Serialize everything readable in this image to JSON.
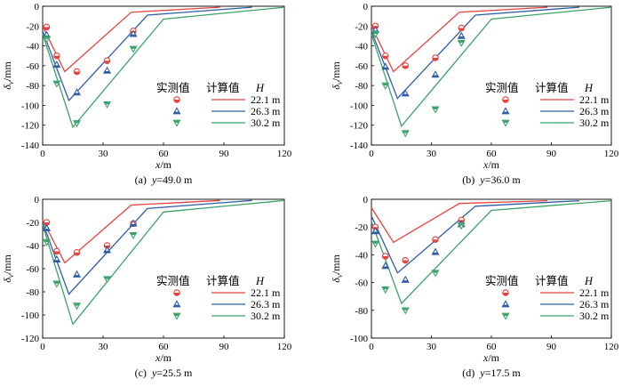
{
  "legend": {
    "measured_label": "实测值",
    "calculated_label": "计算值",
    "h_label": "H",
    "entries": [
      {
        "label": "22.1 m",
        "color": "#e8413c",
        "marker": "circle"
      },
      {
        "label": "26.3 m",
        "color": "#2f5da8",
        "marker": "triangle-up"
      },
      {
        "label": "30.2 m",
        "color": "#3aa36a",
        "marker": "triangle-down"
      }
    ]
  },
  "axes_text": {
    "xlabel_var": "x",
    "xlabel_unit": "/m",
    "ylabel_var": "δ",
    "ylabel_sub": "v",
    "ylabel_unit": "/mm"
  },
  "chart_data": [
    {
      "type": "line",
      "caption_prefix": "(a)",
      "caption_var": "y",
      "caption_value": "=49.0 m",
      "xlim": [
        0,
        120
      ],
      "ylim": [
        -140,
        0
      ],
      "xticks": [
        0,
        30,
        60,
        90,
        120
      ],
      "yticks": [
        0,
        -20,
        -40,
        -60,
        -80,
        -100,
        -120,
        -140
      ],
      "calculated": [
        {
          "name": "22.1 m",
          "points": [
            [
              0,
              -20
            ],
            [
              11,
              -66
            ],
            [
              44,
              -6
            ],
            [
              88,
              -1
            ]
          ]
        },
        {
          "name": "26.3 m",
          "points": [
            [
              0,
              -25
            ],
            [
              13,
              -95
            ],
            [
              52,
              -9
            ],
            [
              104,
              -1
            ]
          ]
        },
        {
          "name": "30.2 m",
          "points": [
            [
              0,
              -28
            ],
            [
              15,
              -122
            ],
            [
              60,
              -13
            ],
            [
              120,
              -1
            ]
          ]
        }
      ],
      "measured": [
        {
          "name": "22.1 m",
          "points": [
            [
              2,
              -21
            ],
            [
              7,
              -50
            ],
            [
              17,
              -66
            ],
            [
              32,
              -55
            ],
            [
              45,
              -25
            ]
          ]
        },
        {
          "name": "26.3 m",
          "points": [
            [
              2,
              -29
            ],
            [
              7,
              -59
            ],
            [
              17,
              -87
            ],
            [
              32,
              -65
            ],
            [
              45,
              -28
            ]
          ]
        },
        {
          "name": "30.2 m",
          "points": [
            [
              2,
              -33
            ],
            [
              7,
              -78
            ],
            [
              17,
              -118
            ],
            [
              32,
              -99
            ],
            [
              45,
              -43
            ]
          ]
        }
      ]
    },
    {
      "type": "line",
      "caption_prefix": "(b)",
      "caption_var": "y",
      "caption_value": "=36.0 m",
      "xlim": [
        0,
        120
      ],
      "ylim": [
        -140,
        0
      ],
      "xticks": [
        0,
        30,
        60,
        90,
        120
      ],
      "yticks": [
        0,
        -20,
        -40,
        -60,
        -80,
        -100,
        -120,
        -140
      ],
      "calculated": [
        {
          "name": "22.1 m",
          "points": [
            [
              0,
              -20
            ],
            [
              11,
              -66
            ],
            [
              44,
              -6
            ],
            [
              88,
              -1
            ]
          ]
        },
        {
          "name": "26.3 m",
          "points": [
            [
              0,
              -25
            ],
            [
              13,
              -93
            ],
            [
              52,
              -9
            ],
            [
              104,
              -1
            ]
          ]
        },
        {
          "name": "30.2 m",
          "points": [
            [
              0,
              -28
            ],
            [
              15,
              -121
            ],
            [
              60,
              -13
            ],
            [
              120,
              -1
            ]
          ]
        }
      ],
      "measured": [
        {
          "name": "22.1 m",
          "points": [
            [
              2,
              -20
            ],
            [
              7,
              -50
            ],
            [
              17,
              -60
            ],
            [
              32,
              -52
            ],
            [
              45,
              -22
            ]
          ]
        },
        {
          "name": "26.3 m",
          "points": [
            [
              2,
              -24
            ],
            [
              7,
              -61
            ],
            [
              17,
              -88
            ],
            [
              32,
              -69
            ],
            [
              45,
              -30
            ]
          ]
        },
        {
          "name": "30.2 m",
          "points": [
            [
              2,
              -28
            ],
            [
              7,
              -80
            ],
            [
              17,
              -128
            ],
            [
              32,
              -104
            ],
            [
              45,
              -37
            ]
          ]
        }
      ]
    },
    {
      "type": "line",
      "caption_prefix": "(c)",
      "caption_var": "y",
      "caption_value": "=25.5 m",
      "xlim": [
        0,
        120
      ],
      "ylim": [
        -120,
        0
      ],
      "xticks": [
        0,
        30,
        60,
        90,
        120
      ],
      "yticks": [
        0,
        -20,
        -40,
        -60,
        -80,
        -100,
        -120
      ],
      "calculated": [
        {
          "name": "22.1 m",
          "points": [
            [
              0,
              -18
            ],
            [
              11,
              -55
            ],
            [
              44,
              -5
            ],
            [
              88,
              -1
            ]
          ]
        },
        {
          "name": "26.3 m",
          "points": [
            [
              0,
              -20
            ],
            [
              13,
              -82
            ],
            [
              52,
              -8
            ],
            [
              104,
              -1
            ]
          ]
        },
        {
          "name": "30.2 m",
          "points": [
            [
              0,
              -22
            ],
            [
              15,
              -108
            ],
            [
              60,
              -11
            ],
            [
              120,
              -1
            ]
          ]
        }
      ],
      "measured": [
        {
          "name": "22.1 m",
          "points": [
            [
              2,
              -20
            ],
            [
              7,
              -45
            ],
            [
              17,
              -46
            ],
            [
              32,
              -40
            ],
            [
              45,
              -21
            ]
          ]
        },
        {
          "name": "26.3 m",
          "points": [
            [
              2,
              -25
            ],
            [
              7,
              -52
            ],
            [
              17,
              -65
            ],
            [
              32,
              -44
            ],
            [
              45,
              -21
            ]
          ]
        },
        {
          "name": "30.2 m",
          "points": [
            [
              2,
              -37
            ],
            [
              7,
              -73
            ],
            [
              17,
              -92
            ],
            [
              32,
              -69
            ],
            [
              45,
              -31
            ]
          ]
        }
      ]
    },
    {
      "type": "line",
      "caption_prefix": "(d)",
      "caption_var": "y",
      "caption_value": "=17.5 m",
      "xlim": [
        0,
        120
      ],
      "ylim": [
        -100,
        0
      ],
      "xticks": [
        0,
        30,
        60,
        90,
        120
      ],
      "yticks": [
        0,
        -20,
        -40,
        -60,
        -80,
        -100
      ],
      "calculated": [
        {
          "name": "22.1 m",
          "points": [
            [
              0,
              -6
            ],
            [
              11,
              -31
            ],
            [
              44,
              -3
            ],
            [
              88,
              -1
            ]
          ]
        },
        {
          "name": "26.3 m",
          "points": [
            [
              0,
              -12
            ],
            [
              13,
              -53
            ],
            [
              52,
              -5
            ],
            [
              104,
              -1
            ]
          ]
        },
        {
          "name": "30.2 m",
          "points": [
            [
              0,
              -16
            ],
            [
              15,
              -75
            ],
            [
              60,
              -8
            ],
            [
              120,
              -1
            ]
          ]
        }
      ],
      "measured": [
        {
          "name": "22.1 m",
          "points": [
            [
              2,
              -20
            ],
            [
              7,
              -41
            ],
            [
              17,
              -44
            ],
            [
              32,
              -29
            ],
            [
              45,
              -15
            ]
          ]
        },
        {
          "name": "26.3 m",
          "points": [
            [
              2,
              -23
            ],
            [
              7,
              -48
            ],
            [
              17,
              -58
            ],
            [
              32,
              -38
            ],
            [
              45,
              -18
            ]
          ]
        },
        {
          "name": "30.2 m",
          "points": [
            [
              2,
              -32
            ],
            [
              7,
              -65
            ],
            [
              17,
              -80
            ],
            [
              32,
              -53
            ],
            [
              45,
              -19
            ]
          ]
        }
      ]
    }
  ]
}
